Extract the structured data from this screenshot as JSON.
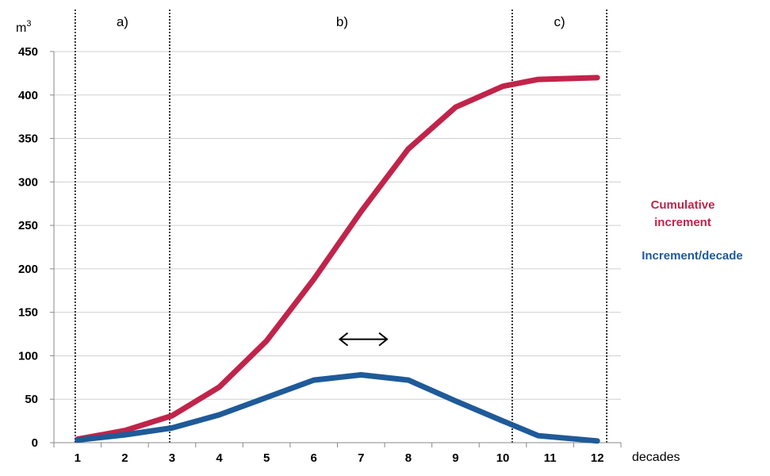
{
  "chart_data": {
    "type": "line",
    "title": "",
    "ylabel_unit": "m",
    "ylabel_unit_exp": "3",
    "xlabel": "decades",
    "x": [
      1,
      2,
      3,
      4,
      5,
      6,
      7,
      8,
      9,
      10,
      11,
      12
    ],
    "xlim": [
      0.5,
      12.5
    ],
    "ylim": [
      0,
      450
    ],
    "yticks": [
      0,
      50,
      100,
      150,
      200,
      250,
      300,
      350,
      400,
      450
    ],
    "grid": "horizontal",
    "series": [
      {
        "name": "Cumulative increment",
        "name_lines": [
          "Cumulative",
          "increment"
        ],
        "color": "#c0244a",
        "points": [
          [
            1,
            4
          ],
          [
            2,
            14
          ],
          [
            3,
            31
          ],
          [
            4,
            64
          ],
          [
            5,
            117
          ],
          [
            6,
            188
          ],
          [
            7,
            266
          ],
          [
            8,
            338
          ],
          [
            9,
            386
          ],
          [
            10,
            410
          ],
          [
            10.75,
            418
          ],
          [
            12,
            420
          ]
        ]
      },
      {
        "name": "Increment/decade",
        "name_lines": [
          "Increment/decade"
        ],
        "color": "#1f5a99",
        "points": [
          [
            1,
            3
          ],
          [
            2,
            9
          ],
          [
            3,
            17
          ],
          [
            4,
            32
          ],
          [
            5,
            52
          ],
          [
            6,
            72
          ],
          [
            7,
            78
          ],
          [
            8,
            72
          ],
          [
            9,
            48
          ],
          [
            10,
            25
          ],
          [
            10.75,
            8
          ],
          [
            12,
            2
          ]
        ]
      }
    ],
    "phase_dividers": [
      0.95,
      2.95,
      10.2,
      12.2
    ],
    "phase_labels": [
      {
        "text": "a)",
        "x": 1.95
      },
      {
        "text": "b)",
        "x": 6.6
      },
      {
        "text": "c)",
        "x": 11.2
      }
    ],
    "annotation": {
      "type": "double-arrow",
      "x_from": 6.55,
      "x_to": 7.55,
      "y": 119
    }
  }
}
